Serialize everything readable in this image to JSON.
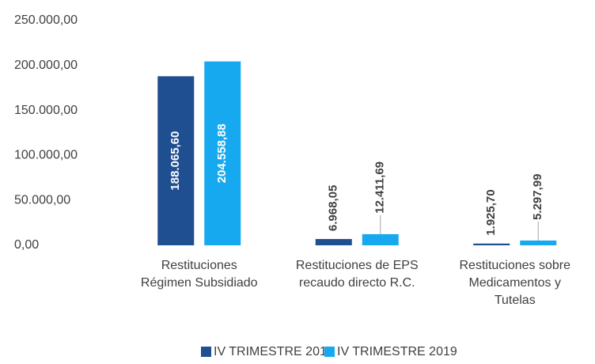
{
  "chart_data": {
    "type": "bar",
    "categories": [
      [
        "Restituciones",
        "Régimen Subsidiado"
      ],
      [
        "Restituciones de EPS",
        "recaudo directo R.C."
      ],
      [
        "Restituciones sobre",
        "Medicamentos y",
        "Tutelas"
      ]
    ],
    "series": [
      {
        "name": "IV TRIMESTRE 2018",
        "color": "#1f4e91",
        "values": [
          188065.6,
          6968.05,
          1925.7
        ],
        "value_labels": [
          "188.065,60",
          "6.968,05",
          "1.925,70"
        ]
      },
      {
        "name": "IV TRIMESTRE 2019",
        "color": "#17a9f0",
        "values": [
          204558.88,
          12411.69,
          5297.99
        ],
        "value_labels": [
          "204.558,88",
          "12.411,69",
          "5.297,99"
        ]
      }
    ],
    "ylim": [
      0,
      250000
    ],
    "yticks": [
      {
        "value": 0,
        "label": "0,00"
      },
      {
        "value": 50000,
        "label": "50.000,00"
      },
      {
        "value": 100000,
        "label": "100.000,00"
      },
      {
        "value": 150000,
        "label": "150.000,00"
      },
      {
        "value": 200000,
        "label": "200.000,00"
      },
      {
        "value": 250000,
        "label": "250.000,00"
      }
    ],
    "legend": "bottom"
  }
}
